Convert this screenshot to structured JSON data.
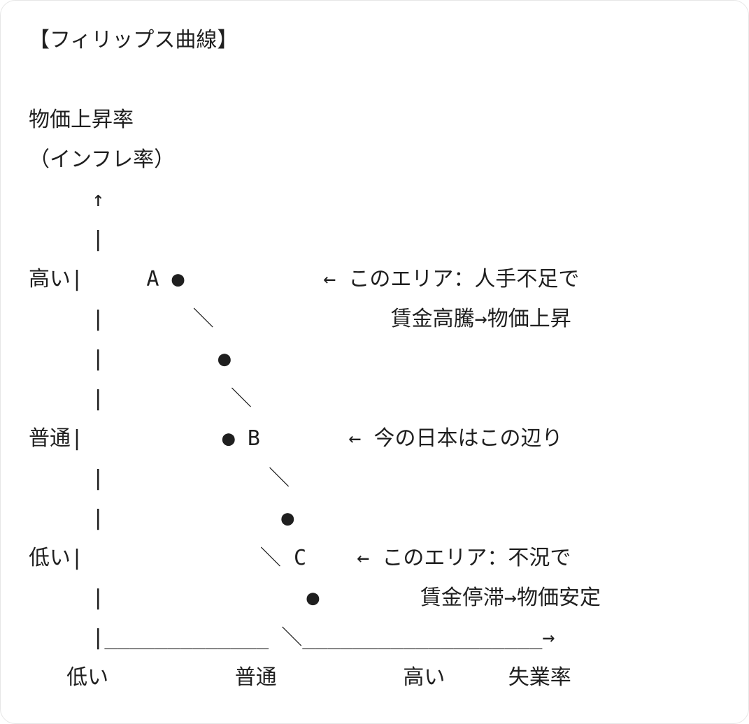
{
  "title": "【フィリップス曲線】",
  "lines": [
    "【フィリップス曲線】",
    "",
    "物価上昇率",
    "（インフレ率）",
    "     ↑",
    "     |",
    "高い|     A ●           ← このエリア：人手不足で",
    "     |       ＼              賃金高騰→物価上昇",
    "     |         ●",
    "     |          ＼",
    "普通|           ● B       ← 今の日本はこの辺り",
    "     |             ＼",
    "     |              ●",
    "低い|              ＼ C    ← このエリア：不況で",
    "     |                ●        賃金停滞→物価安定",
    "     |_____________ ＼___________________→",
    "   低い          普通          高い     失業率"
  ],
  "labels": {
    "y_axis": "物価上昇率",
    "y_axis_sub": "（インフレ率）",
    "x_axis": "失業率",
    "points": [
      "A",
      "B",
      "C"
    ],
    "annotations": [
      "このエリア：人手不足で 賃金高騰→物価上昇",
      "今の日本はこの辺り",
      "このエリア：不況で 賃金停滞→物価安定"
    ]
  }
}
